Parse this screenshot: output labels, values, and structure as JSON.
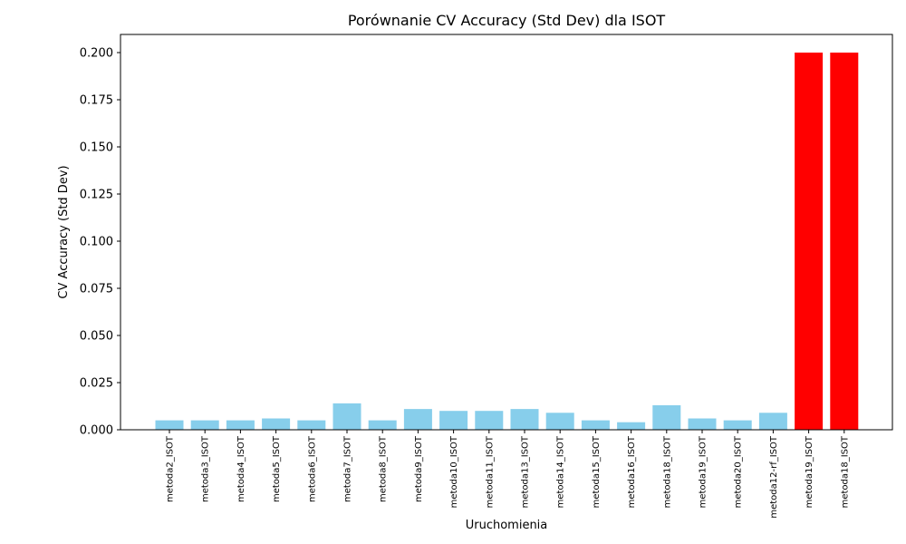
{
  "chart_data": {
    "type": "bar",
    "title": "Porównanie CV Accuracy (Std Dev) dla ISOT",
    "xlabel": "Uruchomienia",
    "ylabel": "CV Accuracy (Std Dev)",
    "ylim": [
      0,
      0.21
    ],
    "yticks": [
      "0.000",
      "0.025",
      "0.050",
      "0.075",
      "0.100",
      "0.125",
      "0.150",
      "0.175",
      "0.200"
    ],
    "grid": false,
    "categories": [
      "metoda2_ISOT",
      "metoda3_ISOT",
      "metoda4_ISOT",
      "metoda5_ISOT",
      "metoda6_ISOT",
      "metoda7_ISOT",
      "metoda8_ISOT",
      "metoda9_ISOT",
      "metoda10_ISOT",
      "metoda11_ISOT",
      "metoda13_ISOT",
      "metoda14_ISOT",
      "metoda15_ISOT",
      "metoda16_ISOT",
      "metoda18_ISOT",
      "metoda19_ISOT",
      "metoda20_ISOT",
      "metoda12-rf_ISOT",
      "metoda19_ISOT",
      "metoda18_ISOT"
    ],
    "values": [
      0.005,
      0.005,
      0.005,
      0.006,
      0.005,
      0.014,
      0.005,
      0.011,
      0.01,
      0.01,
      0.011,
      0.009,
      0.005,
      0.004,
      0.013,
      0.006,
      0.005,
      0.009,
      0.2,
      0.2
    ],
    "bar_colors": [
      "#87ceeb",
      "#87ceeb",
      "#87ceeb",
      "#87ceeb",
      "#87ceeb",
      "#87ceeb",
      "#87ceeb",
      "#87ceeb",
      "#87ceeb",
      "#87ceeb",
      "#87ceeb",
      "#87ceeb",
      "#87ceeb",
      "#87ceeb",
      "#87ceeb",
      "#87ceeb",
      "#87ceeb",
      "#87ceeb",
      "#ff0000",
      "#ff0000"
    ]
  }
}
